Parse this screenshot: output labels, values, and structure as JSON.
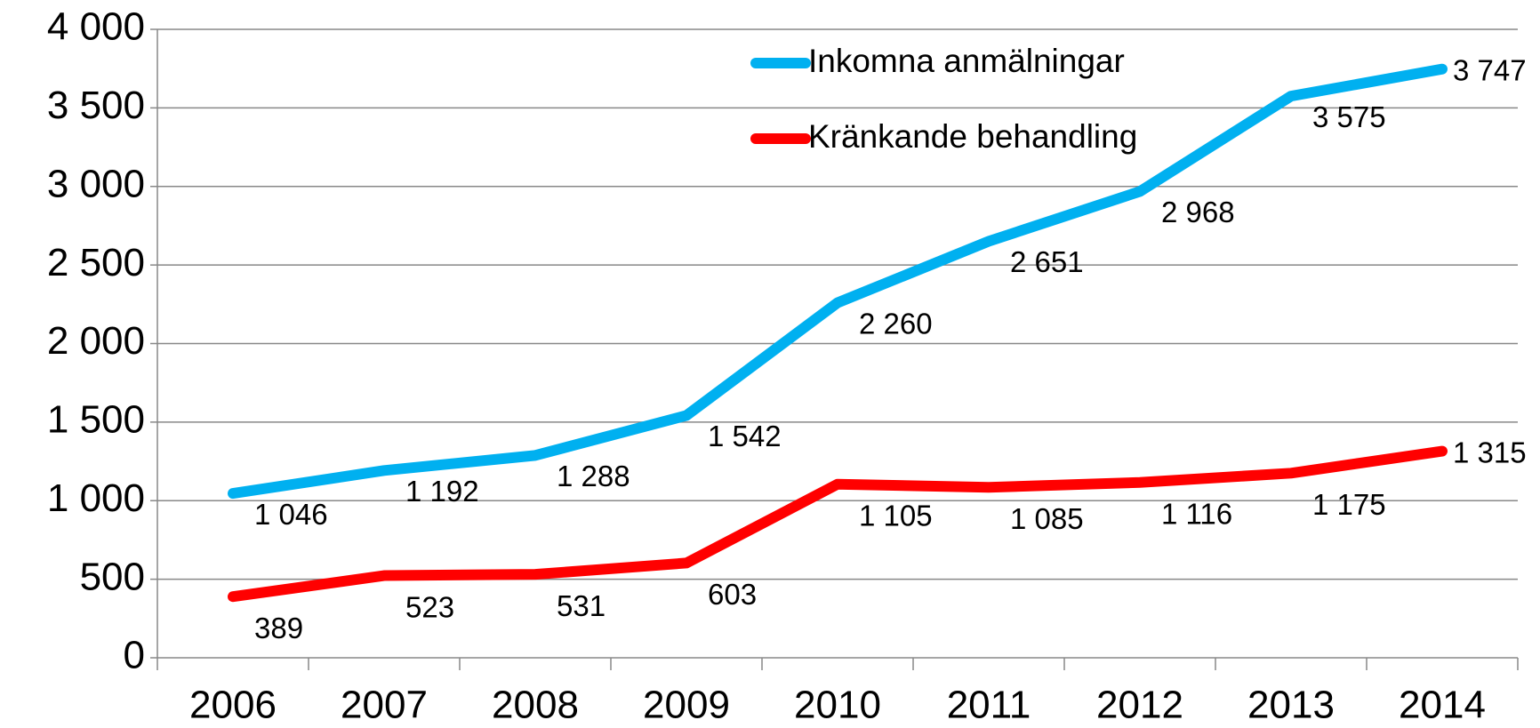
{
  "chart_data": {
    "type": "line",
    "categories": [
      "2006",
      "2007",
      "2008",
      "2009",
      "2010",
      "2011",
      "2012",
      "2013",
      "2014"
    ],
    "series": [
      {
        "name": "Inkomna anmälningar",
        "color": "#00b0f0",
        "values": [
          1046,
          1192,
          1288,
          1542,
          2260,
          2651,
          2968,
          3575,
          3747
        ],
        "value_labels": [
          "1 046",
          "1 192",
          "1 288",
          "1 542",
          "2 260",
          "2 651",
          "2 968",
          "3 575",
          "3 747"
        ]
      },
      {
        "name": "Kränkande behandling",
        "color": "#ff0000",
        "values": [
          389,
          523,
          531,
          603,
          1105,
          1085,
          1116,
          1175,
          1315
        ],
        "value_labels": [
          "389",
          "523",
          "531",
          "603",
          "1 105",
          "1 085",
          "1 116",
          "1 175",
          "1 315"
        ]
      }
    ],
    "ylim": [
      0,
      4000
    ],
    "yticks": [
      0,
      500,
      {
        "value": 1000,
        "label": "1 000"
      },
      {
        "value": 1500,
        "label": "1 500"
      },
      {
        "value": 2000,
        "label": "2 000"
      },
      {
        "value": 2500,
        "label": "2 500"
      },
      {
        "value": 3000,
        "label": "3 000"
      },
      {
        "value": 3500,
        "label": "3 500"
      },
      {
        "value": 4000,
        "label": "4 000"
      }
    ],
    "grid": true,
    "legend": "top"
  }
}
